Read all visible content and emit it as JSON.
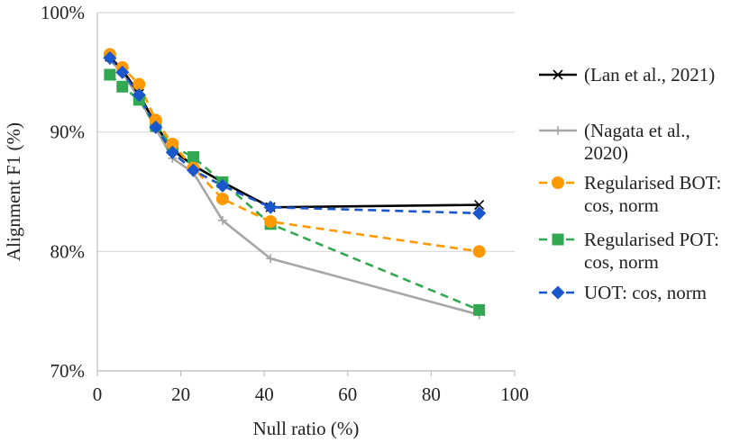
{
  "chart_data": {
    "type": "line",
    "title": "",
    "xlabel": "Null ratio (%)",
    "ylabel": "Alignment F1 (%)",
    "xlim": [
      0,
      100
    ],
    "ylim": [
      70,
      100
    ],
    "xticks": [
      0,
      20,
      40,
      60,
      80,
      100
    ],
    "yticks": [
      70,
      80,
      90,
      100
    ],
    "ytick_labels": [
      "70%",
      "80%",
      "90%",
      "100%"
    ],
    "grid": "horizontal",
    "legend_position": "right",
    "series": [
      {
        "name": "(Lan et al., 2021)",
        "legend_lines": [
          "(Lan et al., 2021)"
        ],
        "color": "#000000",
        "dash": "solid",
        "marker": "x",
        "x": [
          3,
          6,
          10,
          14,
          18,
          23,
          30,
          41.5,
          91.5
        ],
        "y": [
          96.3,
          95.2,
          93.2,
          90.6,
          88.5,
          87.2,
          85.8,
          83.7,
          83.9
        ]
      },
      {
        "name": "(Nagata et al., 2020)",
        "legend_lines": [
          "(Nagata et al.,",
          "2020)"
        ],
        "color": "#a6a6a6",
        "dash": "solid",
        "marker": "plus",
        "x": [
          3,
          6,
          10,
          14,
          18,
          23,
          30,
          41.5,
          91.5
        ],
        "y": [
          96.0,
          95.0,
          92.8,
          90.3,
          87.8,
          86.6,
          82.6,
          79.4,
          74.7
        ]
      },
      {
        "name": "Regularised BOT: cos, norm",
        "legend_lines": [
          "Regularised BOT:",
          "cos, norm"
        ],
        "color": "#ff9900",
        "dash": "dashed",
        "marker": "circle",
        "x": [
          3,
          6,
          10,
          14,
          18,
          23,
          30,
          41.5,
          91.5
        ],
        "y": [
          96.5,
          95.4,
          94.0,
          91.0,
          89.0,
          87.0,
          84.4,
          82.5,
          80.0
        ]
      },
      {
        "name": "Regularised POT: cos, norm",
        "legend_lines": [
          "Regularised POT:",
          "cos, norm"
        ],
        "color": "#33a852",
        "dash": "dashed",
        "marker": "square",
        "x": [
          3,
          6,
          10,
          14,
          18,
          23,
          30,
          41.5,
          91.5
        ],
        "y": [
          94.8,
          93.8,
          92.7,
          90.5,
          88.8,
          87.9,
          85.8,
          82.3,
          75.1
        ]
      },
      {
        "name": "UOT: cos, norm",
        "legend_lines": [
          "UOT: cos, norm"
        ],
        "color": "#1a56cc",
        "dash": "dashed",
        "marker": "diamond",
        "x": [
          3,
          6,
          10,
          14,
          18,
          23,
          30,
          41.5,
          91.5
        ],
        "y": [
          96.2,
          95.0,
          93.1,
          90.4,
          88.3,
          86.8,
          85.5,
          83.7,
          83.2
        ]
      }
    ]
  }
}
